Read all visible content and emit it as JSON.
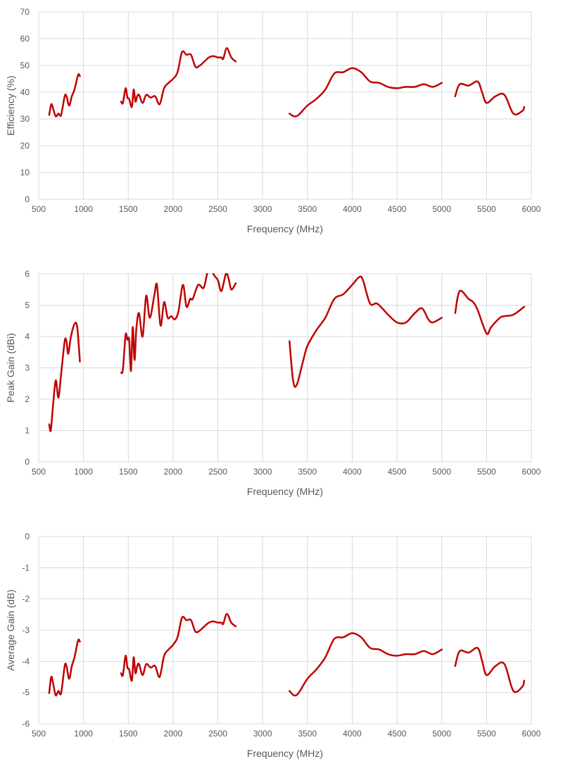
{
  "line_color": "#c00000",
  "chart_data": [
    {
      "type": "line",
      "xlabel": "Frequency (MHz)",
      "ylabel": "Efficiency (%)",
      "xlim": [
        500,
        6000
      ],
      "ylim": [
        0,
        70
      ],
      "xticks": [
        500,
        1000,
        1500,
        2000,
        2500,
        3000,
        3500,
        4000,
        4500,
        5000,
        5500,
        6000
      ],
      "yticks": [
        0,
        10,
        20,
        30,
        40,
        50,
        60,
        70
      ],
      "grid": true,
      "segments": [
        {
          "x": [
            617,
            640,
            660,
            690,
            720,
            750,
            790,
            810,
            840,
            870,
            900,
            940,
            960
          ],
          "y": [
            31.5,
            35.5,
            34,
            31,
            32,
            31.5,
            38.5,
            38.5,
            35,
            38.5,
            41,
            46.5,
            46
          ]
        },
        {
          "x": [
            1420,
            1440,
            1470,
            1490,
            1510,
            1540,
            1560,
            1580,
            1600,
            1620,
            1660,
            1700,
            1750,
            1800,
            1850,
            1900,
            1950,
            2000,
            2050,
            2100,
            2150,
            2200,
            2250,
            2300,
            2350,
            2400,
            2450,
            2500,
            2540,
            2560,
            2600,
            2650,
            2700
          ],
          "y": [
            36.5,
            36,
            41.5,
            38,
            37.5,
            34.5,
            41,
            36.5,
            38.5,
            39,
            36,
            39,
            38,
            38.5,
            35.5,
            41.5,
            43.5,
            45,
            47.5,
            55,
            54,
            54,
            49.5,
            50,
            51.5,
            53,
            53.5,
            53,
            53,
            52.5,
            56.5,
            53,
            51.5
          ]
        },
        {
          "x": [
            3300,
            3350,
            3400,
            3500,
            3600,
            3700,
            3800,
            3900,
            4000,
            4100,
            4200,
            4300,
            4400,
            4500,
            4600,
            4700,
            4800,
            4900,
            5000
          ],
          "y": [
            32,
            31,
            31.5,
            35,
            37.5,
            41,
            47,
            47.5,
            49,
            47.5,
            44,
            43.5,
            42,
            41.5,
            42,
            42,
            43,
            42,
            43.5
          ]
        },
        {
          "x": [
            5150,
            5200,
            5300,
            5400,
            5450,
            5500,
            5600,
            5700,
            5800,
            5900,
            5920
          ],
          "y": [
            38.5,
            43,
            42.5,
            44,
            40,
            36,
            38.5,
            39,
            32,
            33,
            34.5
          ]
        }
      ]
    },
    {
      "type": "line",
      "xlabel": "Frequency (MHz)",
      "ylabel": "Peak Gain (dBi)",
      "xlim": [
        500,
        6000
      ],
      "ylim": [
        0,
        6
      ],
      "xticks": [
        500,
        1000,
        1500,
        2000,
        2500,
        3000,
        3500,
        4000,
        4500,
        5000,
        5500,
        6000
      ],
      "yticks": [
        0,
        1,
        2,
        3,
        4,
        5,
        6
      ],
      "grid": true,
      "segments": [
        {
          "x": [
            617,
            635,
            660,
            690,
            720,
            750,
            790,
            810,
            830,
            860,
            900,
            930,
            960
          ],
          "y": [
            1.2,
            1.0,
            1.8,
            2.6,
            2.05,
            2.8,
            3.85,
            3.85,
            3.45,
            4.0,
            4.4,
            4.3,
            3.2
          ]
        },
        {
          "x": [
            1420,
            1440,
            1470,
            1490,
            1510,
            1530,
            1550,
            1570,
            1590,
            1620,
            1660,
            1700,
            1740,
            1790,
            1820,
            1860,
            1900,
            1940,
            1980,
            2020,
            2060,
            2110,
            2150,
            2190,
            2220,
            2280,
            2340,
            2380,
            2420,
            2450,
            2500,
            2540,
            2590,
            2620,
            2650,
            2700
          ],
          "y": [
            2.85,
            2.95,
            4.05,
            3.9,
            3.9,
            2.9,
            4.3,
            3.25,
            4.25,
            4.75,
            4.0,
            5.3,
            4.6,
            5.3,
            5.65,
            4.35,
            5.1,
            4.6,
            4.65,
            4.55,
            4.8,
            5.65,
            4.95,
            5.2,
            5.2,
            5.65,
            5.55,
            6.0,
            6.4,
            6.0,
            5.8,
            5.45,
            6.0,
            5.85,
            5.5,
            5.7
          ]
        },
        {
          "x": [
            3300,
            3340,
            3380,
            3450,
            3500,
            3600,
            3700,
            3800,
            3900,
            4000,
            4080,
            4120,
            4200,
            4280,
            4400,
            4500,
            4600,
            4700,
            4780,
            4850,
            4900,
            5000
          ],
          "y": [
            3.85,
            2.6,
            2.45,
            3.2,
            3.7,
            4.2,
            4.6,
            5.2,
            5.35,
            5.65,
            5.9,
            5.8,
            5.05,
            5.05,
            4.7,
            4.45,
            4.45,
            4.75,
            4.9,
            4.55,
            4.45,
            4.6
          ]
        },
        {
          "x": [
            5150,
            5200,
            5300,
            5350,
            5400,
            5500,
            5550,
            5650,
            5700,
            5800,
            5920
          ],
          "y": [
            4.75,
            5.45,
            5.2,
            5.1,
            4.85,
            4.1,
            4.3,
            4.6,
            4.65,
            4.7,
            4.95
          ]
        }
      ]
    },
    {
      "type": "line",
      "xlabel": "Frequency (MHz)",
      "ylabel": "Average Gain (dB)",
      "xlim": [
        500,
        6000
      ],
      "ylim": [
        -6,
        0
      ],
      "xticks": [
        500,
        1000,
        1500,
        2000,
        2500,
        3000,
        3500,
        4000,
        4500,
        5000,
        5500,
        6000
      ],
      "yticks": [
        -6,
        -5,
        -4,
        -3,
        -2,
        -1,
        0
      ],
      "grid": true,
      "segments": [
        {
          "x": [
            617,
            640,
            660,
            690,
            720,
            750,
            790,
            810,
            840,
            870,
            900,
            940,
            960
          ],
          "y": [
            -5.02,
            -4.5,
            -4.69,
            -5.09,
            -4.95,
            -5.02,
            -4.15,
            -4.15,
            -4.56,
            -4.15,
            -3.87,
            -3.33,
            -3.37
          ]
        },
        {
          "x": [
            1420,
            1440,
            1470,
            1490,
            1510,
            1540,
            1560,
            1580,
            1600,
            1620,
            1660,
            1700,
            1750,
            1800,
            1850,
            1900,
            1950,
            2000,
            2050,
            2100,
            2150,
            2200,
            2250,
            2300,
            2350,
            2400,
            2450,
            2500,
            2540,
            2560,
            2600,
            2650,
            2700
          ],
          "y": [
            -4.38,
            -4.44,
            -3.82,
            -4.2,
            -4.26,
            -4.62,
            -3.87,
            -4.38,
            -4.15,
            -4.09,
            -4.44,
            -4.09,
            -4.2,
            -4.15,
            -4.5,
            -3.82,
            -3.62,
            -3.47,
            -3.23,
            -2.6,
            -2.68,
            -2.68,
            -3.05,
            -3.01,
            -2.88,
            -2.76,
            -2.72,
            -2.76,
            -2.76,
            -2.8,
            -2.48,
            -2.76,
            -2.88
          ]
        },
        {
          "x": [
            3300,
            3350,
            3400,
            3500,
            3600,
            3700,
            3800,
            3900,
            4000,
            4100,
            4200,
            4300,
            4400,
            4500,
            4600,
            4700,
            4800,
            4900,
            5000
          ],
          "y": [
            -4.95,
            -5.09,
            -5.02,
            -4.56,
            -4.26,
            -3.87,
            -3.28,
            -3.23,
            -3.1,
            -3.23,
            -3.57,
            -3.62,
            -3.77,
            -3.82,
            -3.77,
            -3.77,
            -3.67,
            -3.77,
            -3.62
          ]
        },
        {
          "x": [
            5150,
            5200,
            5300,
            5400,
            5450,
            5500,
            5600,
            5700,
            5800,
            5900,
            5920
          ],
          "y": [
            -4.15,
            -3.67,
            -3.72,
            -3.57,
            -3.98,
            -4.44,
            -4.15,
            -4.09,
            -4.95,
            -4.81,
            -4.62
          ]
        }
      ]
    }
  ]
}
